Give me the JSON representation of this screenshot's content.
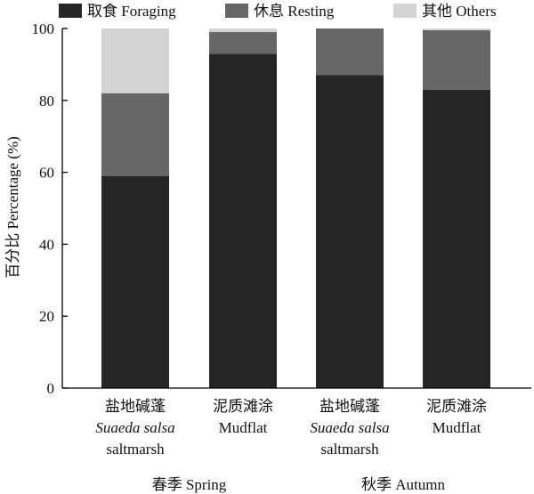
{
  "chart_data": {
    "type": "bar",
    "stacked": true,
    "ylabel": "百分比 Percentage (%)",
    "ylim": [
      0,
      100
    ],
    "yticks": [
      0,
      20,
      40,
      60,
      80,
      100
    ],
    "legend_position": "top",
    "categories": [
      {
        "lines": [
          {
            "text": "盐地碱蓬",
            "italic": false
          },
          {
            "text": "Suaeda salsa",
            "italic": true
          },
          {
            "text": "saltmarsh",
            "italic": false
          }
        ]
      },
      {
        "lines": [
          {
            "text": "泥质滩涂",
            "italic": false
          },
          {
            "text": "Mudflat",
            "italic": false
          }
        ]
      },
      {
        "lines": [
          {
            "text": "盐地碱蓬",
            "italic": false
          },
          {
            "text": "Suaeda salsa",
            "italic": true
          },
          {
            "text": "saltmarsh",
            "italic": false
          }
        ]
      },
      {
        "lines": [
          {
            "text": "泥质滩涂",
            "italic": false
          },
          {
            "text": "Mudflat",
            "italic": false
          }
        ]
      }
    ],
    "groups": [
      {
        "label": "春季 Spring",
        "categories": [
          0,
          1
        ]
      },
      {
        "label": "秋季 Autumn",
        "categories": [
          2,
          3
        ]
      }
    ],
    "series": [
      {
        "name": "取食 Foraging",
        "color": "#262626",
        "values": [
          59,
          93,
          87,
          83
        ]
      },
      {
        "name": "休息 Resting",
        "color": "#666666",
        "values": [
          23,
          6,
          13,
          16.5
        ]
      },
      {
        "name": "其他 Others",
        "color": "#d4d4d4",
        "values": [
          18,
          1,
          0,
          0.5
        ]
      }
    ]
  }
}
